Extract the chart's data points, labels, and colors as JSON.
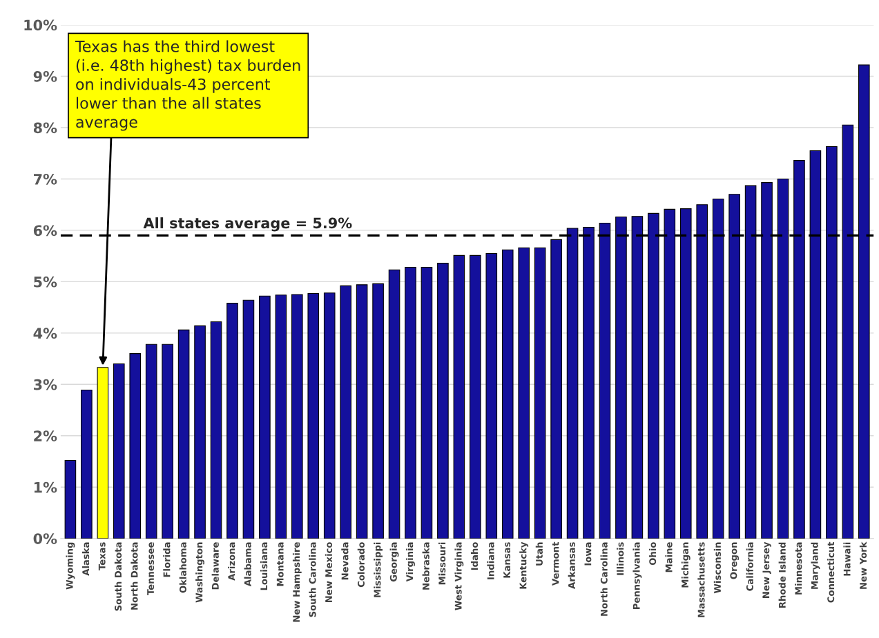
{
  "chart_data": {
    "type": "bar",
    "categories": [
      "Wyoming",
      "Alaska",
      "Texas",
      "South Dakota",
      "North Dakota",
      "Tennessee",
      "Florida",
      "Oklahoma",
      "Washington",
      "Delaware",
      "Arizona",
      "Alabama",
      "Louisiana",
      "Montana",
      "New Hampshire",
      "South Carolina",
      "New Mexico",
      "Nevada",
      "Colorado",
      "Mississippi",
      "Georgia",
      "Virginia",
      "Nebraska",
      "Missouri",
      "West Virginia",
      "Idaho",
      "Indiana",
      "Kansas",
      "Kentucky",
      "Utah",
      "Vermont",
      "Arkansas",
      "Iowa",
      "North Carolina",
      "Illinois",
      "Pennsylvania",
      "Ohio",
      "Maine",
      "Michigan",
      "Massachusetts",
      "Wisconsin",
      "Oregon",
      "California",
      "New Jersey",
      "Rhode Island",
      "Minnesota",
      "Maryland",
      "Connecticut",
      "Hawaii",
      "New York"
    ],
    "values": [
      1.52,
      2.89,
      3.33,
      3.4,
      3.6,
      3.78,
      3.78,
      4.06,
      4.14,
      4.22,
      4.58,
      4.64,
      4.72,
      4.74,
      4.75,
      4.77,
      4.78,
      4.92,
      4.94,
      4.96,
      5.23,
      5.28,
      5.28,
      5.36,
      5.51,
      5.51,
      5.55,
      5.62,
      5.66,
      5.66,
      5.82,
      6.04,
      6.06,
      6.14,
      6.26,
      6.27,
      6.33,
      6.41,
      6.42,
      6.5,
      6.61,
      6.7,
      6.87,
      6.93,
      7.0,
      7.36,
      7.55,
      7.63,
      8.05,
      9.22
    ],
    "colors": [
      "#14109c",
      "#14109c",
      "#ffff00",
      "#14109c",
      "#14109c",
      "#14109c",
      "#14109c",
      "#14109c",
      "#14109c",
      "#14109c",
      "#14109c",
      "#14109c",
      "#14109c",
      "#14109c",
      "#14109c",
      "#14109c",
      "#14109c",
      "#14109c",
      "#14109c",
      "#14109c",
      "#14109c",
      "#14109c",
      "#14109c",
      "#14109c",
      "#14109c",
      "#14109c",
      "#14109c",
      "#14109c",
      "#14109c",
      "#14109c",
      "#14109c",
      "#14109c",
      "#14109c",
      "#14109c",
      "#14109c",
      "#14109c",
      "#14109c",
      "#14109c",
      "#14109c",
      "#14109c",
      "#14109c",
      "#14109c",
      "#14109c",
      "#14109c",
      "#14109c",
      "#14109c",
      "#14109c",
      "#14109c",
      "#14109c",
      "#14109c"
    ],
    "ylim": [
      0,
      10
    ],
    "yticks": [
      {
        "value": 0,
        "label": "0%"
      },
      {
        "value": 1,
        "label": "1%"
      },
      {
        "value": 2,
        "label": "2%"
      },
      {
        "value": 3,
        "label": "3%"
      },
      {
        "value": 4,
        "label": "4%"
      },
      {
        "value": 5,
        "label": "5%"
      },
      {
        "value": 6,
        "label": "6%"
      },
      {
        "value": 7,
        "label": "7%"
      },
      {
        "value": 8,
        "label": "8%"
      },
      {
        "value": 9,
        "label": "9%"
      },
      {
        "value": 10,
        "label": "10%"
      }
    ],
    "grid": "y",
    "ref_lines": [
      {
        "axis": "y",
        "value": 5.9,
        "label": "All states average = 5.9%",
        "color": "#000000",
        "line_style": "dashed"
      }
    ],
    "annotations": [
      {
        "text": "Texas has the third lowest\n(i.e. 48th highest) tax burden\non individuals-43 percent\nlower than the all states\naverage",
        "x": "Texas",
        "y": 3.33
      }
    ]
  }
}
